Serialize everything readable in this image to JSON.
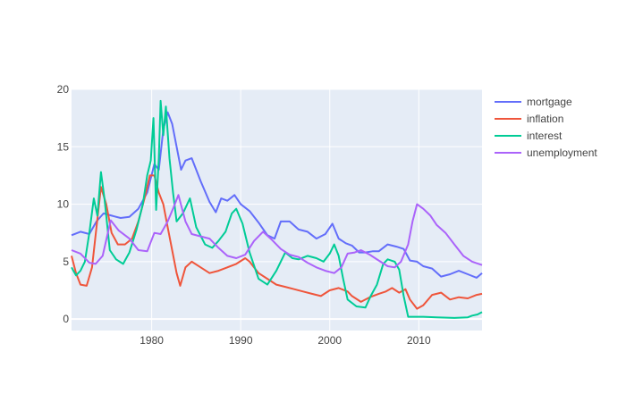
{
  "chart_data": {
    "type": "line",
    "title": "",
    "xlabel": "",
    "ylabel": "",
    "xlim": [
      1971.0,
      2017.1
    ],
    "ylim": [
      -1,
      20
    ],
    "xticks": [
      1980,
      1990,
      2000,
      2010
    ],
    "yticks": [
      0,
      5,
      10,
      15,
      20
    ],
    "grid": true,
    "legend_position": "top-right",
    "background": "#e5ecf6",
    "series": [
      {
        "name": "mortgage",
        "color": "#636efa",
        "x": [
          1971.0,
          1972.0,
          1973.0,
          1973.8,
          1974.6,
          1975.5,
          1976.5,
          1977.5,
          1978.5,
          1979.5,
          1980.3,
          1980.8,
          1981.3,
          1981.8,
          1982.3,
          1982.8,
          1983.3,
          1983.8,
          1984.5,
          1985.5,
          1986.5,
          1987.2,
          1987.8,
          1988.5,
          1989.3,
          1990.0,
          1991.0,
          1992.0,
          1993.0,
          1993.8,
          1994.5,
          1995.5,
          1996.5,
          1997.5,
          1998.5,
          1999.5,
          2000.3,
          2001.0,
          2001.8,
          2002.5,
          2003.3,
          2004.0,
          2004.8,
          2005.5,
          2006.5,
          2007.5,
          2008.3,
          2009.0,
          2009.8,
          2010.5,
          2011.5,
          2012.5,
          2013.5,
          2014.5,
          2015.5,
          2016.5,
          2017.1
        ],
        "y": [
          7.3,
          7.6,
          7.4,
          8.5,
          9.2,
          9.0,
          8.8,
          8.9,
          9.6,
          11.0,
          13.5,
          13.0,
          16.5,
          18.0,
          17.0,
          15.0,
          13.0,
          13.8,
          14.0,
          12.0,
          10.2,
          9.3,
          10.5,
          10.3,
          10.8,
          10.0,
          9.4,
          8.4,
          7.3,
          7.0,
          8.5,
          8.5,
          7.8,
          7.6,
          7.0,
          7.4,
          8.3,
          7.0,
          6.6,
          6.4,
          5.8,
          5.8,
          5.9,
          5.9,
          6.5,
          6.3,
          6.1,
          5.1,
          5.0,
          4.6,
          4.4,
          3.7,
          3.9,
          4.2,
          3.9,
          3.6,
          4.0
        ]
      },
      {
        "name": "inflation",
        "color": "#ef553b",
        "x": [
          1971.0,
          1971.5,
          1972.0,
          1972.7,
          1973.3,
          1973.8,
          1974.3,
          1974.9,
          1975.5,
          1976.2,
          1977.0,
          1977.8,
          1978.5,
          1979.2,
          1979.8,
          1980.3,
          1980.8,
          1981.3,
          1981.8,
          1982.3,
          1982.8,
          1983.2,
          1983.8,
          1984.5,
          1985.5,
          1986.5,
          1987.5,
          1988.5,
          1989.5,
          1990.5,
          1991.0,
          1992.0,
          1993.0,
          1994.0,
          1995.0,
          1996.0,
          1997.0,
          1998.0,
          1999.0,
          2000.0,
          2001.0,
          2002.0,
          2002.5,
          2003.5,
          2004.5,
          2005.5,
          2006.3,
          2007.0,
          2007.8,
          2008.5,
          2009.0,
          2009.8,
          2010.5,
          2011.5,
          2012.5,
          2013.5,
          2014.5,
          2015.5,
          2016.5,
          2017.1
        ],
        "y": [
          5.5,
          4.0,
          3.0,
          2.9,
          4.5,
          8.0,
          11.5,
          10.0,
          7.5,
          6.5,
          6.5,
          7.0,
          8.5,
          10.5,
          12.5,
          12.5,
          11.0,
          10.0,
          8.0,
          6.0,
          4.0,
          2.9,
          4.5,
          5.0,
          4.5,
          4.0,
          4.2,
          4.5,
          4.8,
          5.3,
          5.0,
          4.0,
          3.5,
          3.0,
          2.8,
          2.6,
          2.4,
          2.2,
          2.0,
          2.5,
          2.7,
          2.4,
          2.0,
          1.5,
          1.9,
          2.2,
          2.4,
          2.7,
          2.3,
          2.6,
          1.7,
          0.9,
          1.2,
          2.1,
          2.3,
          1.7,
          1.9,
          1.8,
          2.1,
          2.2
        ]
      },
      {
        "name": "interest",
        "color": "#00cc96",
        "x": [
          1971.0,
          1971.5,
          1972.0,
          1972.5,
          1973.0,
          1973.5,
          1973.9,
          1974.3,
          1974.7,
          1975.3,
          1976.0,
          1976.8,
          1977.5,
          1978.3,
          1979.0,
          1979.5,
          1979.9,
          1980.2,
          1980.5,
          1980.8,
          1981.0,
          1981.3,
          1981.6,
          1982.0,
          1982.4,
          1982.8,
          1983.5,
          1984.3,
          1985.0,
          1986.0,
          1986.8,
          1987.5,
          1988.3,
          1989.0,
          1989.5,
          1990.2,
          1991.0,
          1992.0,
          1993.0,
          1994.0,
          1995.0,
          1995.8,
          1996.5,
          1997.5,
          1998.5,
          1999.3,
          2000.0,
          2000.5,
          2001.0,
          2001.5,
          2002.0,
          2003.0,
          2004.0,
          2004.6,
          2005.3,
          2006.0,
          2006.5,
          2007.3,
          2007.8,
          2008.3,
          2008.8,
          2009.3,
          2010.5,
          2012.0,
          2014.0,
          2015.5,
          2016.0,
          2016.6,
          2017.1
        ],
        "y": [
          4.5,
          3.8,
          4.2,
          5.0,
          7.5,
          10.5,
          9.0,
          12.8,
          10.5,
          6.0,
          5.2,
          4.8,
          5.8,
          7.8,
          10.0,
          12.5,
          13.8,
          17.5,
          9.5,
          14.0,
          19.0,
          16.0,
          18.5,
          14.0,
          11.0,
          8.5,
          9.2,
          10.5,
          8.0,
          6.5,
          6.2,
          6.8,
          7.6,
          9.2,
          9.6,
          8.3,
          5.8,
          3.5,
          3.0,
          4.2,
          5.8,
          5.3,
          5.2,
          5.5,
          5.3,
          5.0,
          5.7,
          6.5,
          5.5,
          3.5,
          1.7,
          1.1,
          1.0,
          2.0,
          3.0,
          4.8,
          5.2,
          5.0,
          4.3,
          2.0,
          0.2,
          0.2,
          0.2,
          0.15,
          0.1,
          0.15,
          0.3,
          0.4,
          0.6
        ]
      },
      {
        "name": "unemployment",
        "color": "#ab63fa",
        "x": [
          1971.0,
          1972.0,
          1973.0,
          1973.7,
          1974.5,
          1975.4,
          1976.3,
          1977.5,
          1978.5,
          1979.5,
          1980.3,
          1981.0,
          1981.8,
          1982.5,
          1983.0,
          1983.8,
          1984.5,
          1985.5,
          1986.5,
          1987.5,
          1988.5,
          1989.5,
          1990.5,
          1991.5,
          1992.5,
          1993.5,
          1994.5,
          1995.5,
          1996.5,
          1997.5,
          1998.5,
          1999.5,
          2000.5,
          2001.3,
          2002.0,
          2002.8,
          2003.5,
          2004.5,
          2005.5,
          2006.5,
          2007.3,
          2008.0,
          2008.8,
          2009.3,
          2009.8,
          2010.5,
          2011.3,
          2012.0,
          2013.0,
          2014.0,
          2015.0,
          2016.0,
          2017.1
        ],
        "y": [
          6.0,
          5.7,
          4.9,
          4.8,
          5.5,
          8.6,
          7.7,
          7.0,
          6.0,
          5.9,
          7.5,
          7.4,
          8.5,
          9.8,
          10.8,
          8.5,
          7.4,
          7.2,
          7.0,
          6.2,
          5.5,
          5.3,
          5.6,
          6.8,
          7.6,
          6.9,
          6.1,
          5.6,
          5.4,
          4.9,
          4.5,
          4.2,
          4.0,
          4.5,
          5.7,
          5.8,
          6.0,
          5.6,
          5.1,
          4.6,
          4.5,
          5.0,
          6.5,
          8.5,
          10.0,
          9.6,
          9.0,
          8.2,
          7.5,
          6.5,
          5.5,
          5.0,
          4.7
        ]
      }
    ]
  }
}
